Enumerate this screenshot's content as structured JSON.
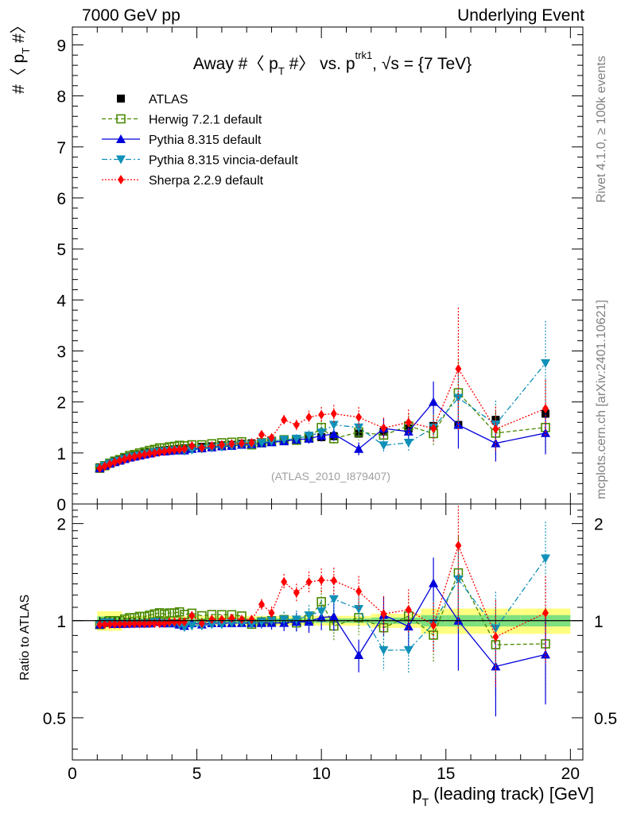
{
  "header": {
    "left": "7000 GeV pp",
    "right": "Underlying Event"
  },
  "side_labels": {
    "rivet": "Rivet 4.1.0, ≥ 100k events",
    "mcplots": "mcplots.cern.ch [arXiv:2401.10621]"
  },
  "colors": {
    "atlas": "#000000",
    "herwig": "#4a8a00",
    "pythia": "#0000dd",
    "vincia": "#1090b8",
    "sherpa": "#ff0000",
    "band_yellow": "#ffff80",
    "band_green": "#7fe07f"
  },
  "chart_data": {
    "type": "line",
    "title": "Away #〈 p_T #〉 vs. p_T^trk1, √s = {7 TeV}",
    "title_parts": {
      "prefix": "Away #〈 p",
      "sub_T": "T",
      "mid": " #〉 vs. p",
      "sup_trk1": "trk1",
      "suffix": ", √s = {7 TeV}"
    },
    "watermark": "(ATLAS_2010_I879407)",
    "xlabel": "p_T (leading track) [GeV]",
    "xlabel_parts": {
      "p": "p",
      "sub": "T",
      "rest": " (leading track) [GeV]"
    },
    "ylabel_main": "#〈 p_T #〉",
    "ylabel_parts": {
      "pre": "#〈 p",
      "sub": "T",
      "post": " #〉"
    },
    "ylabel_ratio": "Ratio to ATLAS",
    "xlim": [
      0,
      20.5
    ],
    "ylim_main": [
      0,
      9.35
    ],
    "ylim_ratio": [
      0.37,
      2.3
    ],
    "xticks": [
      "0",
      "5",
      "10",
      "15",
      "20"
    ],
    "yticks_main": [
      "0",
      "1",
      "2",
      "3",
      "4",
      "5",
      "6",
      "7",
      "8",
      "9"
    ],
    "yticks_ratio": [
      "0.5",
      "1",
      "2"
    ],
    "x": [
      1.1,
      1.3,
      1.5,
      1.7,
      1.9,
      2.1,
      2.3,
      2.5,
      2.7,
      2.9,
      3.1,
      3.3,
      3.5,
      3.7,
      3.9,
      4.1,
      4.3,
      4.5,
      4.8,
      5.2,
      5.6,
      6.0,
      6.4,
      6.8,
      7.2,
      7.6,
      8.0,
      8.5,
      9.0,
      9.5,
      10.0,
      10.5,
      11.5,
      12.5,
      13.5,
      14.5,
      15.5,
      17.0,
      19.0
    ],
    "series": [
      {
        "name": "ATLAS",
        "values": [
          0.72,
          0.76,
          0.8,
          0.84,
          0.87,
          0.9,
          0.93,
          0.95,
          0.97,
          0.99,
          1.01,
          1.02,
          1.04,
          1.05,
          1.06,
          1.07,
          1.08,
          1.09,
          1.1,
          1.12,
          1.13,
          1.15,
          1.16,
          1.18,
          1.19,
          1.21,
          1.23,
          1.25,
          1.27,
          1.29,
          1.31,
          1.33,
          1.38,
          1.42,
          1.48,
          1.53,
          1.55,
          1.65,
          1.77
        ]
      },
      {
        "name": "Herwig 7.2.1 default",
        "values": [
          0.7,
          0.75,
          0.8,
          0.84,
          0.87,
          0.91,
          0.95,
          0.97,
          1.0,
          1.02,
          1.05,
          1.07,
          1.1,
          1.1,
          1.12,
          1.13,
          1.15,
          1.14,
          1.16,
          1.16,
          1.18,
          1.2,
          1.21,
          1.22,
          1.16,
          1.2,
          1.23,
          1.26,
          1.25,
          1.3,
          1.5,
          1.28,
          1.41,
          1.35,
          1.53,
          1.38,
          2.18,
          1.39,
          1.5
        ]
      },
      {
        "name": "Pythia 8.315 default",
        "values": [
          0.7,
          0.75,
          0.79,
          0.82,
          0.85,
          0.88,
          0.91,
          0.93,
          0.95,
          0.97,
          0.99,
          1.01,
          1.03,
          1.03,
          1.04,
          1.05,
          1.05,
          1.05,
          1.08,
          1.09,
          1.11,
          1.13,
          1.14,
          1.16,
          1.17,
          1.19,
          1.21,
          1.23,
          1.26,
          1.28,
          1.34,
          1.37,
          1.08,
          1.48,
          1.42,
          2.0,
          1.55,
          1.19,
          1.39
        ]
      },
      {
        "name": "Pythia 8.315 vincia-default",
        "values": [
          0.7,
          0.75,
          0.79,
          0.82,
          0.85,
          0.88,
          0.91,
          0.93,
          0.95,
          0.97,
          0.99,
          1.01,
          1.02,
          1.03,
          1.04,
          1.05,
          1.05,
          1.04,
          1.06,
          1.08,
          1.1,
          1.12,
          1.14,
          1.16,
          1.16,
          1.2,
          1.23,
          1.26,
          1.28,
          1.34,
          1.4,
          1.55,
          1.5,
          1.15,
          1.2,
          1.5,
          2.08,
          1.56,
          2.76
        ]
      },
      {
        "name": "Sherpa 2.2.9 default",
        "values": [
          0.7,
          0.74,
          0.78,
          0.82,
          0.85,
          0.88,
          0.91,
          0.93,
          0.95,
          0.97,
          0.99,
          1.0,
          1.02,
          1.03,
          1.05,
          1.06,
          1.07,
          1.08,
          1.14,
          1.1,
          1.14,
          1.16,
          1.18,
          1.19,
          1.2,
          1.36,
          1.3,
          1.65,
          1.55,
          1.7,
          1.75,
          1.77,
          1.7,
          1.49,
          1.6,
          1.48,
          2.65,
          1.47,
          1.87
        ]
      }
    ],
    "legend_position": "top-left"
  }
}
